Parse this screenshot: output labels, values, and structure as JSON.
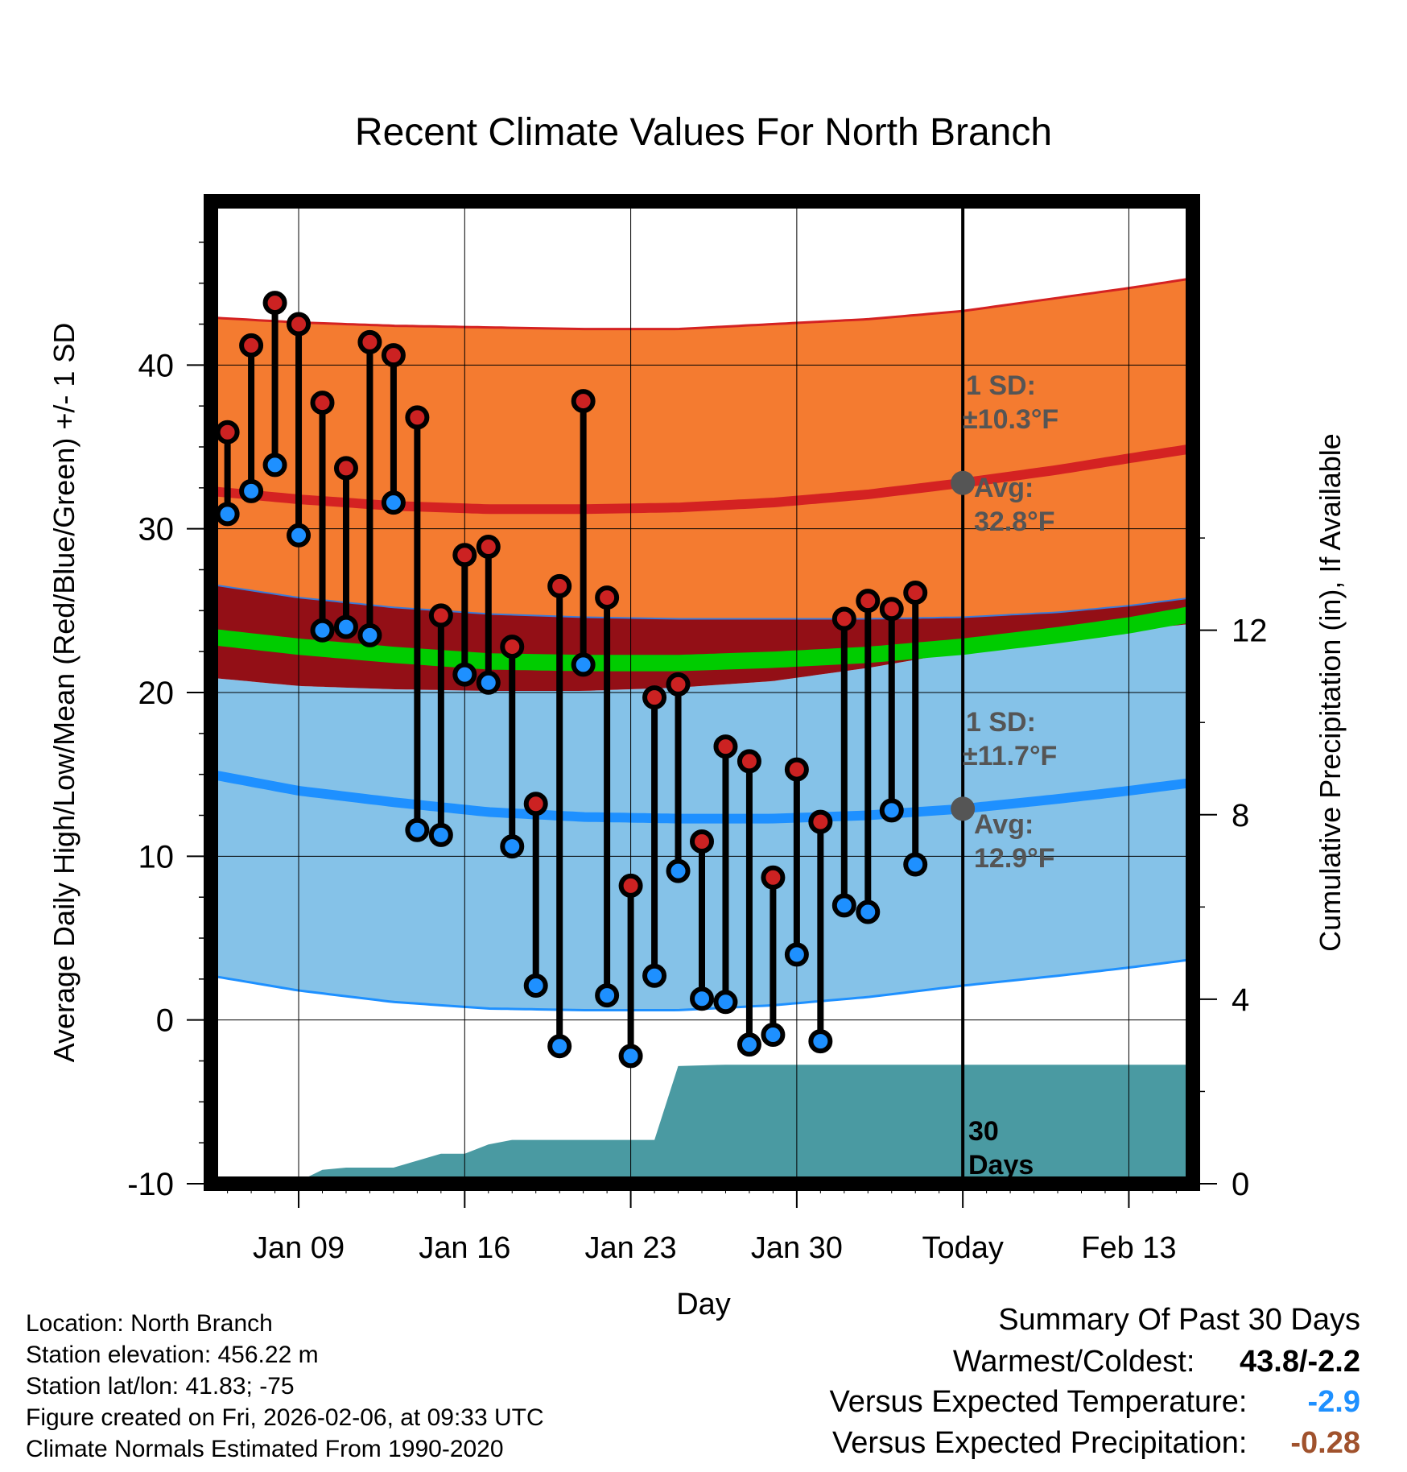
{
  "chart_data": {
    "type": "line",
    "title": "Recent Climate Values For North Branch",
    "xlabel": "Day",
    "ylabel": "Average Daily High/Low/Mean (Red/Blue/Green) +/- 1 SD",
    "y2label": "Cumulative Precipitation (in), If Available",
    "ylim": [
      -10,
      50
    ],
    "y2lim": [
      0,
      21.3
    ],
    "x_range_days": [
      5.3,
      46.7
    ],
    "x_ticks": [
      {
        "day": 9,
        "label": "Jan 09"
      },
      {
        "day": 16,
        "label": "Jan 16"
      },
      {
        "day": 23,
        "label": "Jan 23"
      },
      {
        "day": 30,
        "label": "Jan 30"
      },
      {
        "day": 37,
        "label": "Today"
      },
      {
        "day": 44,
        "label": "Feb 13"
      }
    ],
    "y_ticks": [
      -10,
      0,
      10,
      20,
      30,
      40
    ],
    "y2_ticks": [
      0,
      4,
      8,
      12
    ],
    "today_day": 37,
    "observed": {
      "days": [
        6,
        7,
        8,
        9,
        10,
        11,
        12,
        13,
        14,
        15,
        16,
        17,
        18,
        19,
        20,
        21,
        22,
        23,
        24,
        25,
        26,
        27,
        28,
        29,
        30,
        31,
        32,
        33,
        34,
        35,
        36
      ],
      "highs": [
        35.9,
        41.2,
        43.8,
        42.5,
        37.7,
        33.7,
        41.4,
        40.6,
        36.8,
        24.7,
        28.4,
        28.9,
        22.8,
        13.2,
        26.5,
        37.8,
        25.8,
        8.2,
        19.7,
        20.5,
        10.9,
        16.7,
        15.8,
        8.7,
        15.3,
        12.1,
        24.5,
        25.6,
        25.1,
        26.1,
        null
      ],
      "lows": [
        30.9,
        32.3,
        33.9,
        29.6,
        23.8,
        24.0,
        23.5,
        31.6,
        11.6,
        11.3,
        21.1,
        20.6,
        10.6,
        2.1,
        -1.6,
        21.7,
        1.5,
        -2.2,
        2.7,
        9.1,
        1.3,
        1.1,
        -1.5,
        -0.9,
        4.0,
        -1.3,
        7.0,
        6.6,
        12.8,
        9.5,
        null
      ]
    },
    "normals": {
      "days": [
        5.3,
        9,
        13,
        17,
        21,
        25,
        29,
        33,
        37,
        41,
        44,
        46.7
      ],
      "avg_high": [
        32.3,
        31.8,
        31.4,
        31.2,
        31.2,
        31.3,
        31.6,
        32.1,
        32.8,
        33.6,
        34.3,
        34.9
      ],
      "high_upper": [
        42.9,
        42.6,
        42.4,
        42.3,
        42.2,
        42.2,
        42.5,
        42.8,
        43.3,
        44.1,
        44.7,
        45.3
      ],
      "high_lower": [
        26.6,
        25.8,
        25.2,
        24.8,
        24.6,
        24.5,
        24.5,
        24.5,
        24.6,
        24.9,
        25.3,
        25.8
      ],
      "avg_mean": [
        23.4,
        22.8,
        22.3,
        21.9,
        21.8,
        21.8,
        22.0,
        22.3,
        22.8,
        23.5,
        24.1,
        24.8
      ],
      "avg_low": [
        15.0,
        14.0,
        13.3,
        12.7,
        12.4,
        12.3,
        12.3,
        12.5,
        12.9,
        13.5,
        14.0,
        14.5
      ],
      "low_upper": [
        20.9,
        20.4,
        20.2,
        20.1,
        20.1,
        20.3,
        20.7,
        21.5,
        22.5,
        23.3,
        23.8,
        24.2
      ],
      "low_lower": [
        2.7,
        1.8,
        1.1,
        0.7,
        0.6,
        0.6,
        0.9,
        1.4,
        2.1,
        2.7,
        3.2,
        3.7
      ]
    },
    "precip_cumulative": {
      "days": [
        5.3,
        8.8,
        10,
        11,
        13,
        14,
        15,
        16,
        17,
        18,
        19,
        23,
        24,
        25,
        27,
        30,
        37,
        46.7
      ],
      "values": [
        0,
        0,
        0.3,
        0.35,
        0.35,
        0.5,
        0.65,
        0.65,
        0.85,
        0.95,
        0.95,
        0.95,
        0.95,
        2.55,
        2.58,
        2.58,
        2.58,
        2.58
      ]
    },
    "annotations": {
      "high_sd_label": "1 SD:",
      "high_sd_value": "±10.3°F",
      "high_avg_label": "Avg:",
      "high_avg_value": "32.8°F",
      "low_sd_label": "1 SD:",
      "low_sd_value": "±11.7°F",
      "low_avg_label": "Avg:",
      "low_avg_value": "12.9°F",
      "days_count": "30",
      "days_word": "Days",
      "high_avg_today": 32.8,
      "low_avg_today": 12.9
    },
    "colors": {
      "high_band": "#f47b30",
      "high_line": "#d42222",
      "overlap_band": "#930f16",
      "mean_band": "#00cc00",
      "low_band": "#85c2e8",
      "low_line": "#1e90ff",
      "precip": "#4a9aa2",
      "high_marker": "#cc2222",
      "low_marker": "#1e90ff",
      "annotation": "#555555"
    }
  },
  "info": {
    "location": "Location: North Branch",
    "elevation": "Station elevation: 456.22 m",
    "latlon": "Station lat/lon: 41.83; -75",
    "created": "Figure created on Fri, 2026-02-06, at 09:33 UTC",
    "normals": "Climate Normals Estimated From 1990-2020"
  },
  "summary": {
    "title": "Summary Of Past 30 Days",
    "warmest_label": "Warmest/Coldest:",
    "warmest_value": "43.8/-2.2",
    "temp_label": "Versus Expected Temperature:",
    "temp_value": "-2.9",
    "temp_color": "#1e90ff",
    "precip_label": "Versus Expected Precipitation:",
    "precip_value": "-0.28",
    "precip_color": "#a0522d"
  }
}
